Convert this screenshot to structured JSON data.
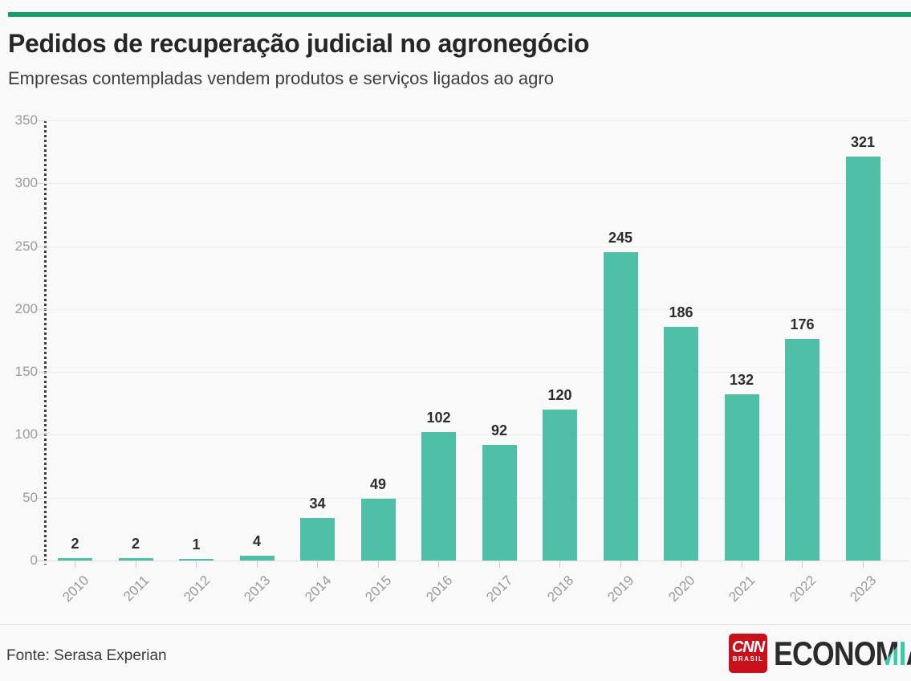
{
  "page": {
    "title": "Pedidos de recuperação judicial no agronegócio",
    "subtitle": "Empresas contempladas vendem produtos e serviços ligados ao agro"
  },
  "chart_data": {
    "type": "bar",
    "title": "Pedidos de recuperação judicial no agronegócio",
    "subtitle": "Empresas contempladas vendem produtos e serviços ligados ao agro",
    "categories": [
      "2010",
      "2011",
      "2012",
      "2013",
      "2014",
      "2015",
      "2016",
      "2017",
      "2018",
      "2019",
      "2020",
      "2021",
      "2022",
      "2023"
    ],
    "values": [
      2,
      2,
      1,
      4,
      34,
      49,
      102,
      92,
      120,
      245,
      186,
      132,
      176,
      321
    ],
    "xlabel": "",
    "ylabel": "",
    "ylim": [
      0,
      350
    ],
    "yticks": [
      0,
      50,
      100,
      150,
      200,
      250,
      300,
      350
    ],
    "grid": true,
    "legend": "none",
    "value_labels": true,
    "bar_color": "#4fc0a5",
    "value_label_color": "#2d2d2d",
    "tick_label_color": "#9c9c9c"
  },
  "footer": {
    "source": "Fonte: Serasa Experian",
    "logo": {
      "cnn_text": "CNN",
      "brasil_text": "BRASIL",
      "wordmark_part1": "ECONO",
      "wordmark_part2": "M",
      "wordmark_part3": "I",
      "wordmark_part4": "A"
    }
  },
  "colors": {
    "background": "#f9f9f9",
    "top_rule_green": "#13a169",
    "bar_teal": "#4fc0a5",
    "accent_teal": "#3bcbaa",
    "cnn_red": "#c9111c",
    "gridline": "#ececec",
    "axis_dotted": "#3a3a3a"
  }
}
